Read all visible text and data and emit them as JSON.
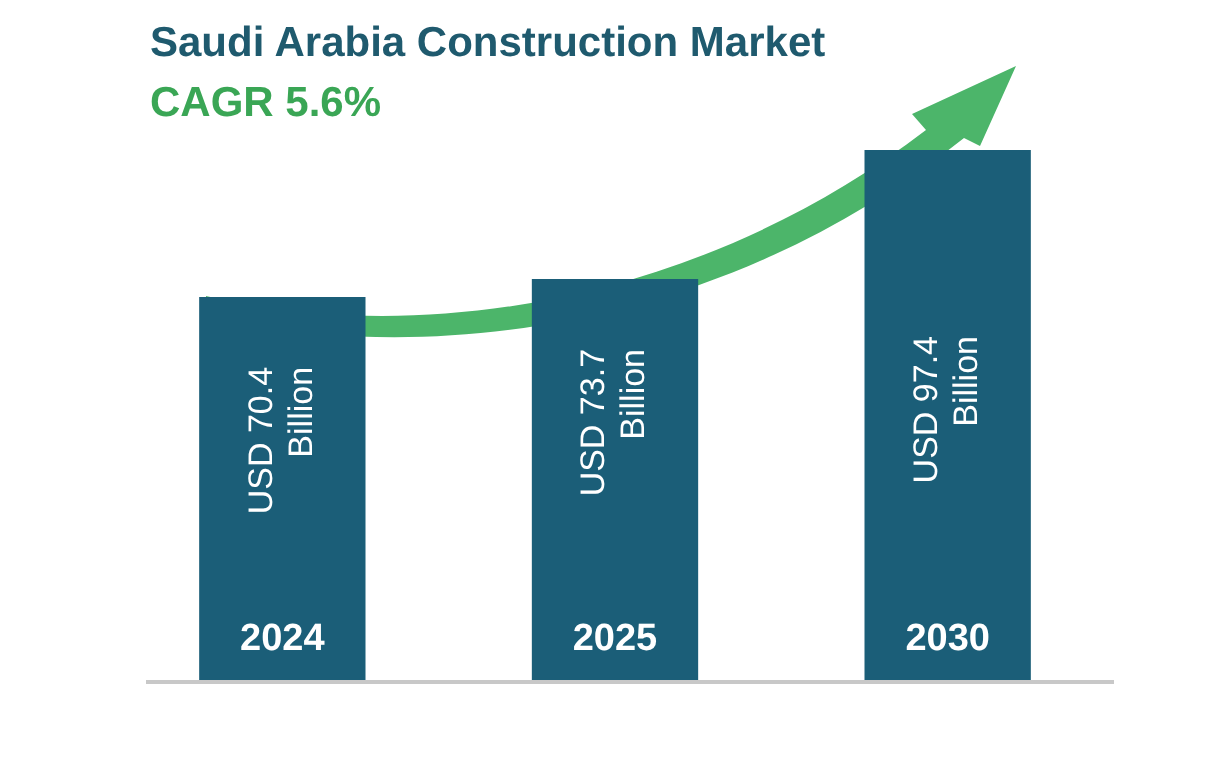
{
  "chart_data": {
    "type": "bar",
    "title": "Saudi Arabia Construction Market",
    "subtitle": "CAGR 5.6%",
    "categories": [
      "2024",
      "2025",
      "2030"
    ],
    "values": [
      70.4,
      73.7,
      97.4
    ],
    "value_labels": [
      "USD 70.4 Billion",
      "USD 73.7 Billion",
      "USD 97.4 Billion"
    ],
    "color": "#1b5e78",
    "tick_labels": "x"
  }
}
